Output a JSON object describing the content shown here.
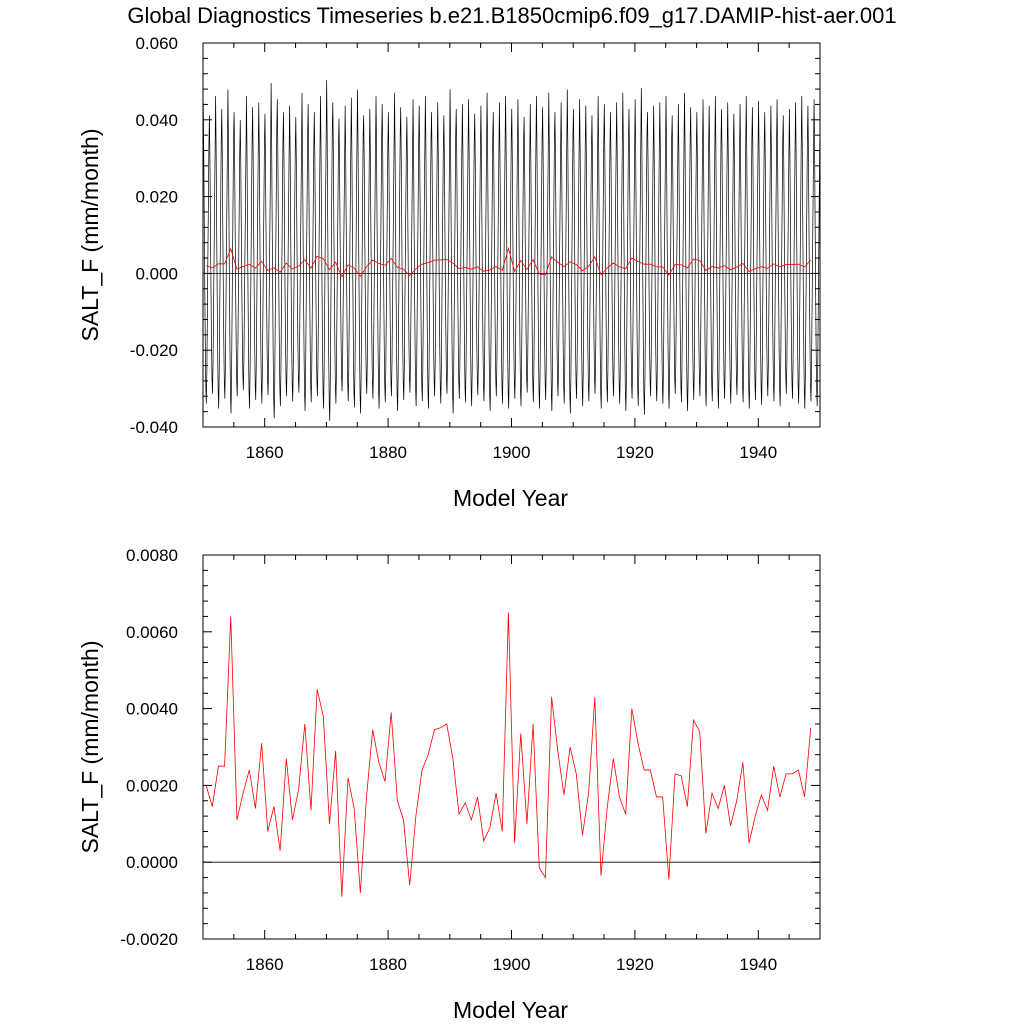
{
  "figure": {
    "title": "Global Diagnostics Timeseries b.e21.B1850cmip6.f09_g17.DAMIP-hist-aer.001"
  },
  "colors": {
    "annual_series": "#ff0000",
    "monthly_series": "#000000",
    "zero_line": "#000000"
  },
  "chart_data": [
    {
      "type": "line",
      "xlabel": "Model Year",
      "ylabel": "SALT_F (mm/month)",
      "xlim": [
        1850,
        1950
      ],
      "ylim": [
        -0.04,
        0.06
      ],
      "x_ticks": [
        1860,
        1880,
        1900,
        1920,
        1940
      ],
      "x_tick_labels": [
        "1860",
        "1880",
        "1900",
        "1920",
        "1940"
      ],
      "y_ticks": [
        -0.04,
        -0.02,
        0.0,
        0.02,
        0.04,
        0.06
      ],
      "y_tick_labels": [
        "-0.040",
        "-0.020",
        "0.000",
        "0.020",
        "0.040",
        "0.060"
      ],
      "grid": false,
      "reference_line_y": 0.0,
      "monthly_series": {
        "x_start": 1850,
        "months_per_year": 12,
        "annual_cycle": [
          0.042,
          0.03,
          0.012,
          -0.004,
          -0.018,
          -0.028,
          -0.032,
          -0.024,
          -0.01,
          0.004,
          0.018,
          0.032
        ],
        "cycle_amplitude_scale": [
          1.06,
          0.98,
          1.1,
          1.02,
          1.14,
          1.0,
          0.95,
          1.1,
          1.03,
          1.06,
          0.99,
          1.18,
          1.08,
          1.0,
          1.04,
          0.97,
          1.12,
          1.05,
          1.0,
          1.1,
          1.2,
          1.06,
          0.96,
          1.04,
          1.09,
          1.14,
          0.98,
          1.02,
          1.1,
          1.05,
          1.0,
          1.12,
          1.03,
          0.97,
          1.08,
          1.04,
          1.1,
          1.0,
          1.06,
          0.98,
          1.14,
          1.02,
          1.05,
          1.08,
          0.99,
          1.04,
          1.12,
          1.0,
          1.06,
          1.1,
          1.02,
          1.08,
          0.97,
          1.05,
          1.1,
          1.03,
          1.12,
          1.0,
          1.06,
          1.14,
          1.02,
          1.08,
          1.04,
          0.98,
          1.1,
          1.05,
          1.0,
          1.06,
          1.12,
          1.02,
          1.08,
          1.15,
          1.0,
          1.04,
          1.06,
          1.1,
          0.98,
          1.05,
          1.12,
          1.03,
          1.0,
          1.08,
          1.04,
          1.1,
          1.02,
          1.06,
          0.99,
          1.05,
          1.1,
          1.03,
          1.07,
          1.0,
          1.04,
          1.08,
          0.98,
          1.02,
          1.06,
          1.1,
          1.04,
          1.08
        ]
      },
      "annual_series": {
        "x_start": 1850,
        "values": [
          0.002,
          0.00145,
          0.0025,
          0.0025,
          0.0064,
          0.0011,
          0.0018,
          0.0024,
          0.0014,
          0.0031,
          0.0008,
          0.00145,
          0.0003,
          0.0027,
          0.0011,
          0.0019,
          0.0036,
          0.00135,
          0.0045,
          0.0038,
          0.001,
          0.0029,
          -0.0009,
          0.0022,
          0.0014,
          -0.0008,
          0.0017,
          0.00345,
          0.0026,
          0.0021,
          0.0039,
          0.0016,
          0.0011,
          -0.0006,
          0.0012,
          0.0024,
          0.0028,
          0.00345,
          0.0035,
          0.0036,
          0.0027,
          0.00125,
          0.00155,
          0.0011,
          0.0017,
          0.00055,
          0.0009,
          0.0018,
          0.0008,
          0.0065,
          0.0005,
          0.00335,
          0.001,
          0.0036,
          -0.00015,
          -0.0004,
          0.0043,
          0.0029,
          0.00175,
          0.003,
          0.0023,
          0.0007,
          0.0018,
          0.0043,
          -0.00035,
          0.0014,
          0.0027,
          0.0017,
          0.00125,
          0.004,
          0.0031,
          0.0024,
          0.0024,
          0.0017,
          0.0017,
          -0.00045,
          0.0023,
          0.00225,
          0.00145,
          0.0037,
          0.0034,
          0.00075,
          0.0018,
          0.0014,
          0.002,
          0.00095,
          0.0016,
          0.0026,
          0.0005,
          0.0012,
          0.00175,
          0.00135,
          0.0025,
          0.0017,
          0.0023,
          0.0023,
          0.0024,
          0.0017,
          0.0035
        ]
      }
    },
    {
      "type": "line",
      "xlabel": "Model Year",
      "ylabel": "SALT_F (mm/month)",
      "xlim": [
        1850,
        1950
      ],
      "ylim": [
        -0.002,
        0.008
      ],
      "x_ticks": [
        1860,
        1880,
        1900,
        1920,
        1940
      ],
      "x_tick_labels": [
        "1860",
        "1880",
        "1900",
        "1920",
        "1940"
      ],
      "y_ticks": [
        -0.002,
        0.0,
        0.002,
        0.004,
        0.006,
        0.008
      ],
      "y_tick_labels": [
        "-0.0020",
        "0.0000",
        "0.0020",
        "0.0040",
        "0.0060",
        "0.0080"
      ],
      "grid": false,
      "reference_line_y": 0.0,
      "annual_series": {
        "x_start": 1850,
        "values": [
          0.002,
          0.00145,
          0.0025,
          0.0025,
          0.0064,
          0.0011,
          0.0018,
          0.0024,
          0.0014,
          0.0031,
          0.0008,
          0.00145,
          0.0003,
          0.0027,
          0.0011,
          0.0019,
          0.0036,
          0.00135,
          0.0045,
          0.0038,
          0.001,
          0.0029,
          -0.0009,
          0.0022,
          0.0014,
          -0.0008,
          0.0017,
          0.00345,
          0.0026,
          0.0021,
          0.0039,
          0.0016,
          0.0011,
          -0.0006,
          0.0012,
          0.0024,
          0.0028,
          0.00345,
          0.0035,
          0.0036,
          0.0027,
          0.00125,
          0.00155,
          0.0011,
          0.0017,
          0.00055,
          0.0009,
          0.0018,
          0.0008,
          0.0065,
          0.0005,
          0.00335,
          0.001,
          0.0036,
          -0.00015,
          -0.0004,
          0.0043,
          0.0029,
          0.00175,
          0.003,
          0.0023,
          0.0007,
          0.0018,
          0.0043,
          -0.00035,
          0.0014,
          0.0027,
          0.0017,
          0.00125,
          0.004,
          0.0031,
          0.0024,
          0.0024,
          0.0017,
          0.0017,
          -0.00045,
          0.0023,
          0.00225,
          0.00145,
          0.0037,
          0.0034,
          0.00075,
          0.0018,
          0.0014,
          0.002,
          0.00095,
          0.0016,
          0.0026,
          0.0005,
          0.0012,
          0.00175,
          0.00135,
          0.0025,
          0.0017,
          0.0023,
          0.0023,
          0.0024,
          0.0017,
          0.0035
        ]
      }
    }
  ]
}
